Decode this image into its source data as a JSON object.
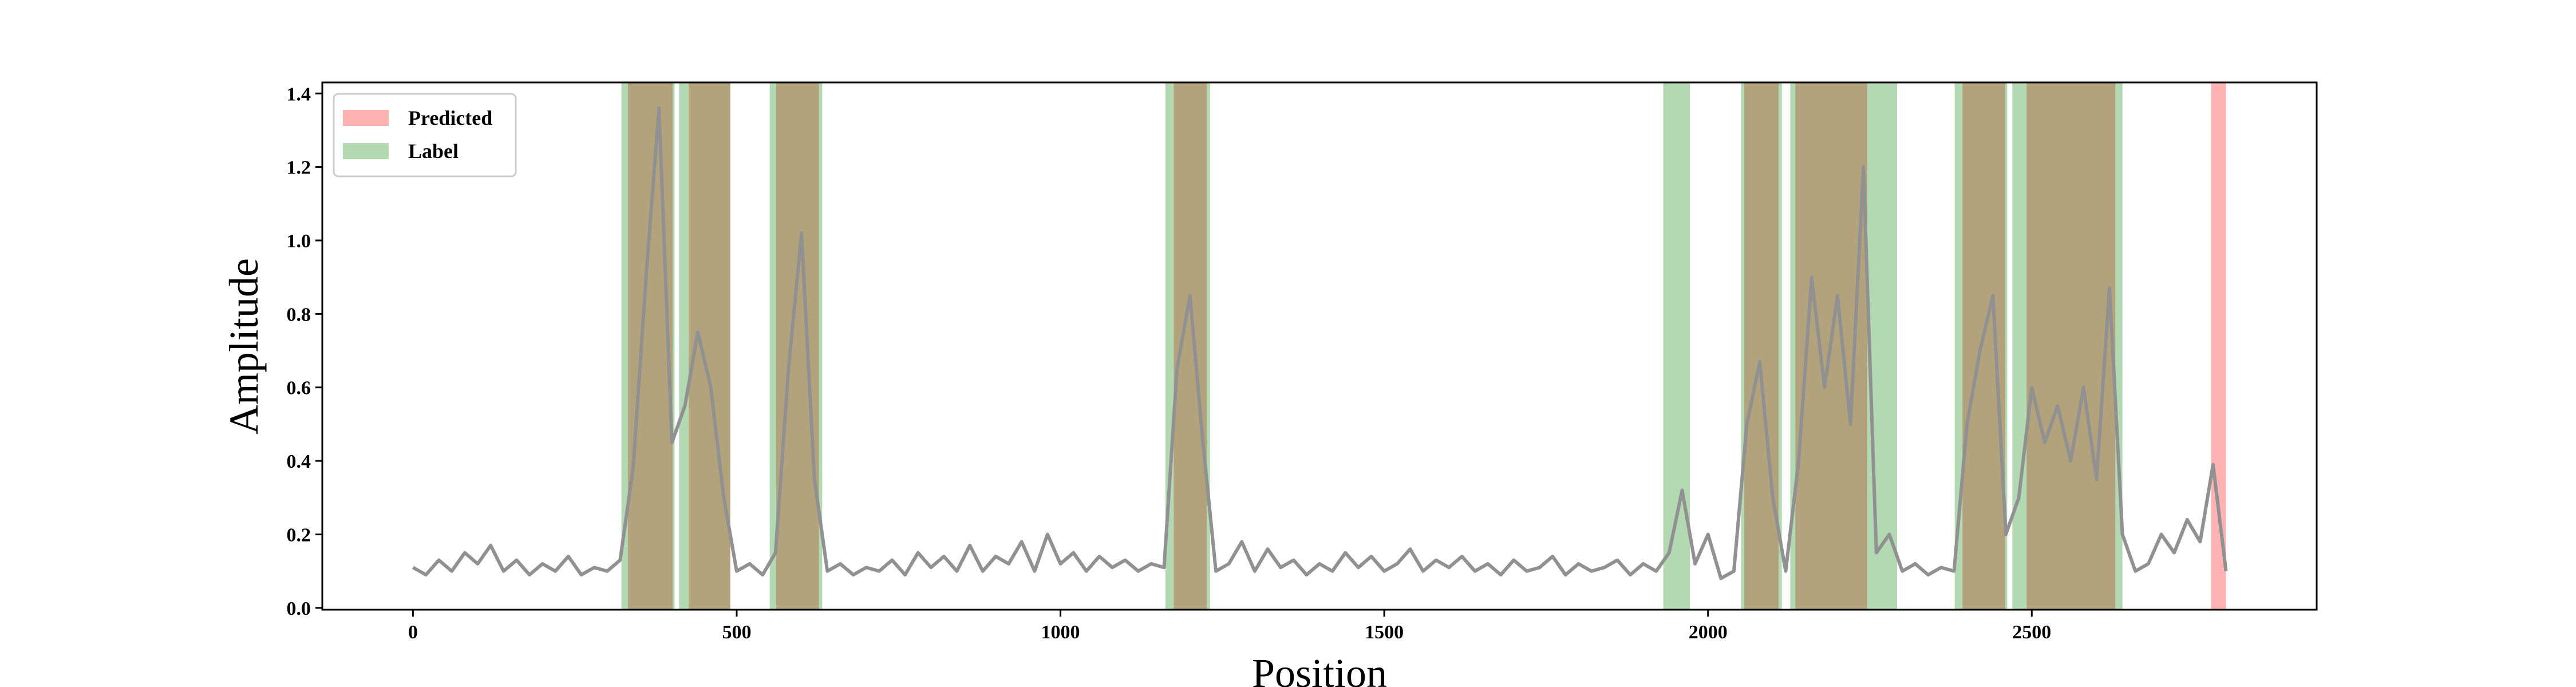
{
  "chart_data": {
    "type": "line",
    "xlabel": "Position",
    "ylabel": "Amplitude",
    "line_color": "#919191",
    "xlim": [
      -140,
      2940
    ],
    "ylim": [
      -0.005,
      1.43
    ],
    "xticks": [
      0,
      500,
      1000,
      1500,
      2000,
      2500
    ],
    "yticks": [
      {
        "value": 0,
        "label": "0.0"
      },
      0.2,
      0.4,
      0.6,
      0.8,
      {
        "value": 1,
        "label": "1.0"
      },
      1.2,
      1.4
    ],
    "legend": "upper left",
    "spans": [
      {
        "name": "Predicted",
        "color": "#ff0000",
        "ranges": [
          [
            332,
            401
          ],
          [
            426,
            490
          ],
          [
            561,
            627
          ],
          [
            1175,
            1226
          ],
          [
            2056,
            2109
          ],
          [
            2135,
            2246
          ],
          [
            2393,
            2459
          ],
          [
            2492,
            2629
          ],
          [
            2777,
            2800
          ]
        ]
      },
      {
        "name": "Label",
        "color": "#008000",
        "ranges": [
          [
            322,
            404
          ],
          [
            411,
            490
          ],
          [
            551,
            632
          ],
          [
            1162,
            1231
          ],
          [
            1931,
            1972
          ],
          [
            2051,
            2114
          ],
          [
            2127,
            2292
          ],
          [
            2381,
            2462
          ],
          [
            2470,
            2640
          ]
        ]
      }
    ],
    "x": [
      0,
      20,
      40,
      60,
      80,
      100,
      120,
      140,
      160,
      180,
      200,
      220,
      240,
      260,
      280,
      300,
      320,
      340,
      360,
      380,
      400,
      420,
      440,
      460,
      480,
      500,
      520,
      540,
      560,
      580,
      600,
      620,
      640,
      660,
      680,
      700,
      720,
      740,
      760,
      780,
      800,
      820,
      840,
      860,
      880,
      900,
      920,
      940,
      960,
      980,
      1000,
      1020,
      1040,
      1060,
      1080,
      1100,
      1120,
      1140,
      1160,
      1180,
      1200,
      1220,
      1240,
      1260,
      1280,
      1300,
      1320,
      1340,
      1360,
      1380,
      1400,
      1420,
      1440,
      1460,
      1480,
      1500,
      1520,
      1540,
      1560,
      1580,
      1600,
      1620,
      1640,
      1660,
      1680,
      1700,
      1720,
      1740,
      1760,
      1780,
      1800,
      1820,
      1840,
      1860,
      1880,
      1900,
      1920,
      1940,
      1960,
      1980,
      2000,
      2020,
      2040,
      2060,
      2080,
      2100,
      2120,
      2140,
      2160,
      2180,
      2200,
      2220,
      2240,
      2260,
      2280,
      2300,
      2320,
      2340,
      2360,
      2380,
      2400,
      2420,
      2440,
      2460,
      2480,
      2500,
      2520,
      2540,
      2560,
      2580,
      2600,
      2620,
      2640,
      2660,
      2680,
      2700,
      2720,
      2740,
      2760,
      2780,
      2800
    ],
    "values": [
      0.11,
      0.09,
      0.13,
      0.1,
      0.15,
      0.12,
      0.17,
      0.1,
      0.13,
      0.09,
      0.12,
      0.1,
      0.14,
      0.09,
      0.11,
      0.1,
      0.13,
      0.38,
      0.9,
      1.36,
      0.45,
      0.55,
      0.75,
      0.6,
      0.3,
      0.1,
      0.12,
      0.09,
      0.15,
      0.65,
      1.02,
      0.35,
      0.1,
      0.12,
      0.09,
      0.11,
      0.1,
      0.13,
      0.09,
      0.15,
      0.11,
      0.14,
      0.1,
      0.17,
      0.1,
      0.14,
      0.12,
      0.18,
      0.1,
      0.2,
      0.12,
      0.15,
      0.1,
      0.14,
      0.11,
      0.13,
      0.1,
      0.12,
      0.11,
      0.65,
      0.85,
      0.45,
      0.1,
      0.12,
      0.18,
      0.1,
      0.16,
      0.11,
      0.13,
      0.09,
      0.12,
      0.1,
      0.15,
      0.11,
      0.14,
      0.1,
      0.12,
      0.16,
      0.1,
      0.13,
      0.11,
      0.14,
      0.1,
      0.12,
      0.09,
      0.13,
      0.1,
      0.11,
      0.14,
      0.09,
      0.12,
      0.1,
      0.11,
      0.13,
      0.09,
      0.12,
      0.1,
      0.15,
      0.32,
      0.12,
      0.2,
      0.08,
      0.1,
      0.5,
      0.67,
      0.3,
      0.1,
      0.4,
      0.9,
      0.6,
      0.85,
      0.5,
      1.2,
      0.15,
      0.2,
      0.1,
      0.12,
      0.09,
      0.11,
      0.1,
      0.5,
      0.7,
      0.85,
      0.2,
      0.3,
      0.6,
      0.45,
      0.55,
      0.4,
      0.6,
      0.35,
      0.87,
      0.2,
      0.1,
      0.12,
      0.2,
      0.15,
      0.24,
      0.18,
      0.39,
      0.1
    ]
  }
}
